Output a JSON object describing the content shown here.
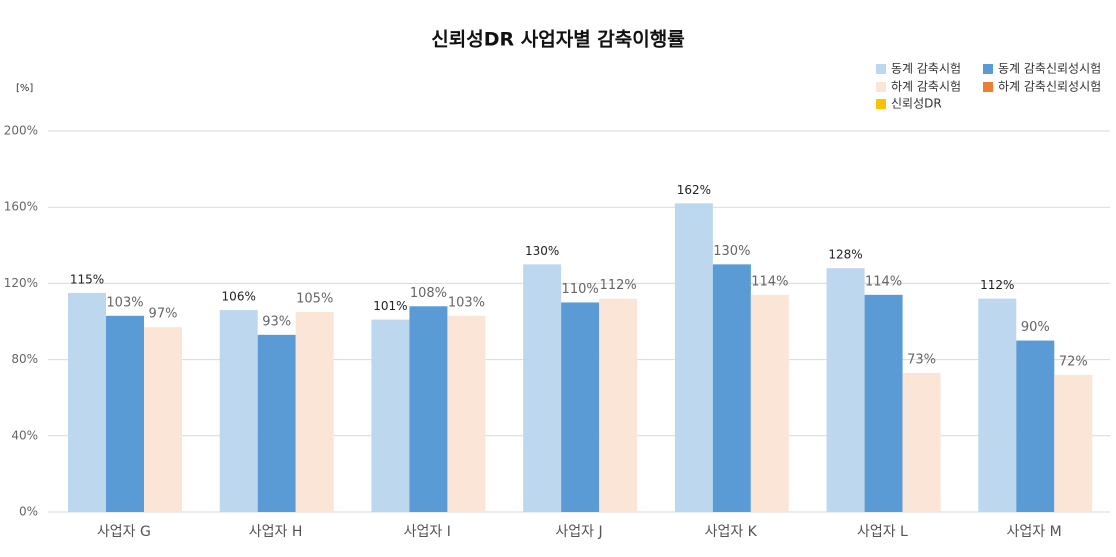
{
  "chart_data": {
    "type": "bar",
    "title": "신뢰성DR 사업자별 감축이행률",
    "y_axis_label": "[%]",
    "categories": [
      "사업자 G",
      "사업자 H",
      "사업자 I",
      "사업자 J",
      "사업자 K",
      "사업자 L",
      "사업자 M"
    ],
    "series": [
      {
        "name": "동계 감축시험",
        "color": "#bdd7ee",
        "values": [
          115,
          106,
          101,
          130,
          162,
          128,
          112
        ],
        "value_labels": [
          "115%",
          "106%",
          "101%",
          "130%",
          "162%",
          "128%",
          "112%"
        ]
      },
      {
        "name": "동계 감축신뢰성시험",
        "color": "#5b9bd5",
        "values": [
          103,
          93,
          108,
          110,
          130,
          114,
          90
        ],
        "value_labels": [
          "103%",
          "93%",
          "108%",
          "110%",
          "130%",
          "114%",
          "90%"
        ]
      },
      {
        "name": "하계 감축시험",
        "color": "#fbe5d6",
        "values": [
          97,
          105,
          103,
          112,
          114,
          73,
          72
        ],
        "value_labels": [
          "97%",
          "105%",
          "103%",
          "112%",
          "114%",
          "73%",
          "72%"
        ]
      },
      {
        "name": "하계 감축신뢰성시험",
        "color": "#ed7d31",
        "values": [
          null,
          null,
          null,
          null,
          null,
          null,
          null
        ]
      },
      {
        "name": "신뢰성DR",
        "color": "#ffc000",
        "values": [
          null,
          null,
          null,
          null,
          null,
          null,
          null
        ]
      }
    ],
    "ylim": [
      0,
      200
    ],
    "yticks": [
      {
        "value": 0,
        "label": "0%"
      },
      {
        "value": 40,
        "label": "40%"
      },
      {
        "value": 80,
        "label": "80%"
      },
      {
        "value": 120,
        "label": "120%"
      },
      {
        "value": 160,
        "label": "160%"
      },
      {
        "value": 200,
        "label": "200%"
      }
    ],
    "grid": true,
    "legend": "top-right"
  }
}
